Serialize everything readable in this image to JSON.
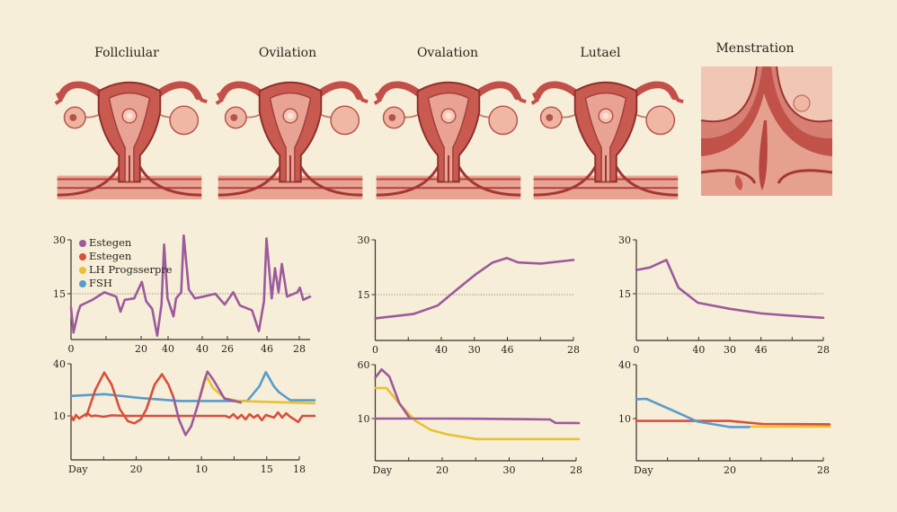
{
  "phases": [
    {
      "title": "Follcliular"
    },
    {
      "title": "Ovilation"
    },
    {
      "title": "Ovalation"
    },
    {
      "title": "Lutael"
    },
    {
      "title": "Menstration"
    }
  ],
  "colors": {
    "purple": "#9c5a9c",
    "red": "#d6503d",
    "yellow": "#e8c232",
    "blue": "#5a9bcb",
    "background": "#f6eed8"
  },
  "legend": [
    {
      "label": "Estegen",
      "color": "#9c5a9c"
    },
    {
      "label": "Estegen",
      "color": "#d6503d"
    },
    {
      "label": "LH Progsserpre",
      "color": "#e8c232"
    },
    {
      "label": "FSH",
      "color": "#5a9bcb"
    }
  ],
  "chart_data": [
    {
      "id": "top-left",
      "type": "line",
      "y_ticks": [
        {
          "value": 30,
          "label": "30"
        },
        {
          "value": 15,
          "label": "15"
        }
      ],
      "reference_line": 15,
      "x_tick_labels": [
        "0",
        "",
        "20",
        "40",
        "40",
        "26",
        "46",
        "28"
      ],
      "series": [
        {
          "name": "Estegen",
          "color": "#9c5a9c",
          "points": [
            [
              0,
              11.2
            ],
            [
              0.3,
              4.2
            ],
            [
              0.8,
              9.6
            ],
            [
              1.1,
              11.7
            ],
            [
              1.8,
              12.5
            ],
            [
              2.5,
              13.3
            ],
            [
              3.9,
              15.4
            ],
            [
              5.3,
              14.2
            ],
            [
              5.8,
              10
            ],
            [
              6.3,
              13.3
            ],
            [
              7.4,
              13.7
            ],
            [
              8.3,
              18.3
            ],
            [
              8.8,
              12.9
            ],
            [
              9.5,
              10.8
            ],
            [
              10.1,
              3.3
            ],
            [
              10.6,
              12
            ],
            [
              10.9,
              28.7
            ],
            [
              11.3,
              13.7
            ],
            [
              12,
              8.7
            ],
            [
              12.3,
              13.7
            ],
            [
              12.9,
              15.4
            ],
            [
              13.2,
              31.2
            ],
            [
              13.8,
              16.2
            ],
            [
              14.5,
              13.7
            ],
            [
              15.5,
              14.2
            ],
            [
              16.9,
              15
            ],
            [
              18,
              12
            ],
            [
              19,
              15.4
            ],
            [
              19.8,
              11.7
            ],
            [
              21.2,
              10.4
            ],
            [
              22,
              4.6
            ],
            [
              22.6,
              12.9
            ],
            [
              22.9,
              30.4
            ],
            [
              23.5,
              13.7
            ],
            [
              23.9,
              22.1
            ],
            [
              24.3,
              15.4
            ],
            [
              24.7,
              23.3
            ],
            [
              25.3,
              14.2
            ],
            [
              26.5,
              15.4
            ],
            [
              26.8,
              16.7
            ],
            [
              27.2,
              13.3
            ],
            [
              28,
              14.2
            ]
          ]
        }
      ]
    },
    {
      "id": "bottom-left",
      "type": "line",
      "y_ticks": [
        {
          "value": 40,
          "label": "40"
        },
        {
          "value": 10,
          "label": "10"
        }
      ],
      "x_tick_labels": [
        "Day",
        "",
        "20",
        "",
        "10",
        "",
        "15",
        "18"
      ],
      "series": [
        {
          "name": "FSH",
          "color": "#5a9bcb",
          "points": [
            [
              0,
              21.5
            ],
            [
              4.1,
              22.5
            ],
            [
              8.5,
              20.3
            ],
            [
              13.4,
              18.6
            ],
            [
              21.7,
              18.6
            ],
            [
              23.2,
              27
            ],
            [
              24,
              35.2
            ],
            [
              25,
              27
            ],
            [
              25.6,
              23.7
            ],
            [
              27,
              19
            ],
            [
              30,
              19
            ]
          ]
        },
        {
          "name": "Estegen (red)",
          "color": "#d6503d",
          "points": [
            [
              0,
              10
            ],
            [
              0.3,
              7.5
            ],
            [
              0.6,
              10.5
            ],
            [
              1,
              8.5
            ],
            [
              1.5,
              10
            ],
            [
              2,
              11.5
            ],
            [
              2.5,
              9.8
            ],
            [
              3,
              10.2
            ],
            [
              4,
              9.5
            ],
            [
              5,
              10.3
            ],
            [
              7,
              10
            ],
            [
              19,
              10
            ],
            [
              19.5,
              9
            ],
            [
              20,
              11
            ],
            [
              20.5,
              8.5
            ],
            [
              21,
              10.5
            ],
            [
              21.5,
              8
            ],
            [
              22,
              11
            ],
            [
              22.5,
              9
            ],
            [
              23,
              10.5
            ],
            [
              23.5,
              7.5
            ],
            [
              24,
              10.5
            ],
            [
              25,
              9
            ],
            [
              25.5,
              12
            ],
            [
              26,
              9
            ],
            [
              26.5,
              11.5
            ],
            [
              27,
              9.5
            ],
            [
              28,
              6.5
            ],
            [
              28.5,
              10
            ],
            [
              30,
              10
            ]
          ]
        },
        {
          "name": "Estegen (red wave)",
          "color": "#d6503d",
          "points": [
            [
              1.9,
              10
            ],
            [
              3,
              25
            ],
            [
              4.1,
              35
            ],
            [
              5,
              28
            ],
            [
              6,
              14
            ],
            [
              7,
              7
            ],
            [
              7.8,
              5.7
            ],
            [
              8.6,
              8
            ],
            [
              9.3,
              14
            ],
            [
              10.3,
              28
            ],
            [
              11.2,
              34
            ],
            [
              12,
              28
            ],
            [
              12.6,
              21
            ]
          ]
        },
        {
          "name": "LH Progsserpre",
          "color": "#e8c232",
          "points": [
            [
              15.6,
              16
            ],
            [
              16.5,
              30
            ],
            [
              16.8,
              32
            ],
            [
              17.5,
              26
            ],
            [
              19,
              20
            ],
            [
              20.9,
              18.5
            ],
            [
              30,
              17.3
            ]
          ]
        },
        {
          "name": "Estegen",
          "color": "#9c5a9c",
          "points": [
            [
              12.6,
              21
            ],
            [
              13.3,
              8
            ],
            [
              14.1,
              -1
            ],
            [
              14.8,
              4
            ],
            [
              15.6,
              16
            ],
            [
              16.4,
              30
            ],
            [
              16.8,
              35.5
            ],
            [
              17.5,
              31
            ],
            [
              18.9,
              20
            ],
            [
              20.9,
              17.7
            ]
          ]
        }
      ]
    },
    {
      "id": "top-middle",
      "type": "line",
      "y_ticks": [
        {
          "value": 30,
          "label": "30"
        },
        {
          "value": 15,
          "label": "15"
        }
      ],
      "reference_line": 15,
      "x_tick_labels": [
        "0",
        "",
        "40",
        "30",
        "46",
        "",
        "28"
      ],
      "series": [
        {
          "name": "Estegen",
          "color": "#9c5a9c",
          "points": [
            [
              0,
              8.5
            ],
            [
              5.4,
              9.7
            ],
            [
              8.8,
              12
            ],
            [
              11.6,
              16.5
            ],
            [
              14.3,
              20.7
            ],
            [
              16.6,
              23.8
            ],
            [
              18.6,
              25
            ],
            [
              20.2,
              23.8
            ],
            [
              23.4,
              23.5
            ],
            [
              28,
              24.5
            ]
          ]
        }
      ]
    },
    {
      "id": "bottom-middle",
      "type": "line",
      "y_ticks": [
        {
          "value": 60,
          "label": "60"
        },
        {
          "value": 10,
          "label": "10"
        }
      ],
      "x_tick_labels": [
        "Day",
        "",
        "20",
        "",
        "30",
        "",
        "28"
      ],
      "series": [
        {
          "name": "LH Progsserpre",
          "color": "#e8c232",
          "points": [
            [
              0,
              38.3
            ],
            [
              1.6,
              38.3
            ],
            [
              3.4,
              23.9
            ],
            [
              5.7,
              7.8
            ],
            [
              7.9,
              -0.6
            ],
            [
              10.2,
              -4.7
            ],
            [
              14.3,
              -9
            ],
            [
              28.8,
              -9
            ]
          ]
        },
        {
          "name": "Estegen",
          "color": "#9c5a9c",
          "points": [
            [
              0,
              10
            ],
            [
              10,
              10
            ],
            [
              15,
              9.8
            ],
            [
              20,
              9.5
            ],
            [
              24.7,
              9.2
            ],
            [
              25.5,
              6
            ],
            [
              28.8,
              5.8
            ]
          ]
        },
        {
          "name": "Estegen peak",
          "color": "#9c5a9c",
          "points": [
            [
              0,
              48
            ],
            [
              0.9,
              55.6
            ],
            [
              2,
              49
            ],
            [
              3.4,
              24.4
            ],
            [
              4.8,
              11
            ]
          ]
        }
      ]
    },
    {
      "id": "top-right",
      "type": "line",
      "y_ticks": [
        {
          "value": 30,
          "label": "30"
        },
        {
          "value": 15,
          "label": "15"
        }
      ],
      "reference_line": 15,
      "x_tick_labels": [
        "0",
        "",
        "40",
        "30",
        "46",
        "",
        "28"
      ],
      "series": [
        {
          "name": "Estegen",
          "color": "#9c5a9c",
          "points": [
            [
              0,
              21.6
            ],
            [
              2,
              22.3
            ],
            [
              4.5,
              24.4
            ],
            [
              6.3,
              16.7
            ],
            [
              9.2,
              12.5
            ],
            [
              14,
              10.8
            ],
            [
              18.8,
              9.5
            ],
            [
              23.1,
              8.9
            ],
            [
              28,
              8.3
            ]
          ]
        }
      ]
    },
    {
      "id": "bottom-right",
      "type": "line",
      "y_ticks": [
        {
          "value": 40,
          "label": "40"
        },
        {
          "value": 10,
          "label": "10"
        }
      ],
      "x_tick_labels": [
        "Day",
        "",
        "",
        "20",
        "",
        "",
        "28"
      ],
      "series": [
        {
          "name": "LH Progsserpre",
          "color": "#e8c232",
          "points": [
            [
              16.9,
              5.5
            ],
            [
              29,
              5.5
            ]
          ]
        },
        {
          "name": "Estegen",
          "color": "#d6503d",
          "points": [
            [
              0,
              8.7
            ],
            [
              14,
              8.7
            ],
            [
              18.9,
              7
            ],
            [
              29,
              6.8
            ]
          ]
        },
        {
          "name": "FSH",
          "color": "#5a9bcb",
          "points": [
            [
              0,
              20.8
            ],
            [
              1.5,
              21
            ],
            [
              4.7,
              15.8
            ],
            [
              9.2,
              8.3
            ],
            [
              14,
              5.3
            ],
            [
              16.9,
              5.3
            ]
          ]
        }
      ]
    }
  ]
}
